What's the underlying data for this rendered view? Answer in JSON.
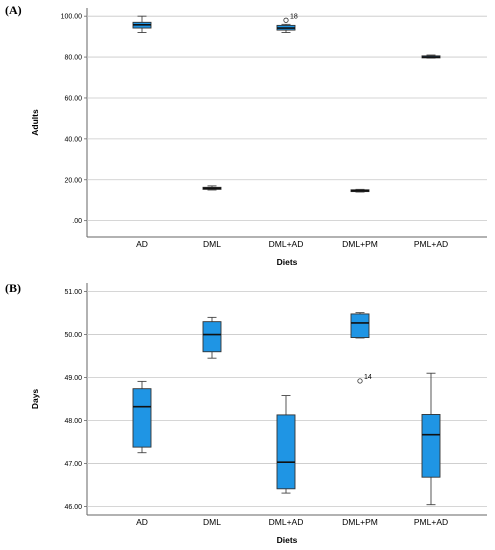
{
  "chart_data": [
    {
      "panel_label": "(A)",
      "type": "box",
      "xlabel": "Diets",
      "ylabel": "Adults",
      "categories": [
        "AD",
        "DML",
        "DML+AD",
        "DML+PM",
        "PML+AD"
      ],
      "yticks": [
        ".00",
        "20.00",
        "40.00",
        "60.00",
        "80.00",
        "100.00"
      ],
      "ylim": [
        -8,
        104
      ],
      "grid": "horizontal",
      "box_color": "#1f95e4",
      "boxes": [
        {
          "category": "AD",
          "min": 92,
          "q1": 94.2,
          "median": 95.8,
          "q3": 97,
          "max": 100
        },
        {
          "category": "DML",
          "min": 15,
          "q1": 15.3,
          "median": 15.8,
          "q3": 16.3,
          "max": 17
        },
        {
          "category": "DML+AD",
          "min": 92,
          "q1": 93.2,
          "median": 94.2,
          "q3": 95.5,
          "max": 96,
          "outliers": [
            {
              "value": 98,
              "label": "18"
            }
          ]
        },
        {
          "category": "DML+PM",
          "min": 14,
          "q1": 14.2,
          "median": 14.6,
          "q3": 15.1,
          "max": 15.3
        },
        {
          "category": "PML+AD",
          "min": 79.5,
          "q1": 79.6,
          "median": 80,
          "q3": 80.6,
          "max": 81
        }
      ]
    },
    {
      "panel_label": "(B)",
      "type": "box",
      "xlabel": "Diets",
      "ylabel": "Days",
      "categories": [
        "AD",
        "DML",
        "DML+AD",
        "DML+PM",
        "PML+AD"
      ],
      "yticks": [
        "46.00",
        "47.00",
        "48.00",
        "49.00",
        "50.00",
        "51.00"
      ],
      "ylim": [
        45.8,
        51.2
      ],
      "grid": "horizontal",
      "box_color": "#1f95e4",
      "boxes": [
        {
          "category": "AD",
          "min": 47.25,
          "q1": 47.38,
          "median": 48.32,
          "q3": 48.74,
          "max": 48.91
        },
        {
          "category": "DML",
          "min": 49.45,
          "q1": 49.6,
          "median": 50,
          "q3": 50.3,
          "max": 50.4
        },
        {
          "category": "DML+AD",
          "min": 46.31,
          "q1": 46.41,
          "median": 47.03,
          "q3": 48.13,
          "max": 48.58
        },
        {
          "category": "DML+PM",
          "min": 49.92,
          "q1": 49.93,
          "median": 50.27,
          "q3": 50.48,
          "max": 50.51,
          "outliers": [
            {
              "value": 48.92,
              "label": "14"
            }
          ]
        },
        {
          "category": "PML+AD",
          "min": 46.04,
          "q1": 46.68,
          "median": 47.67,
          "q3": 48.14,
          "max": 49.1
        }
      ]
    }
  ]
}
